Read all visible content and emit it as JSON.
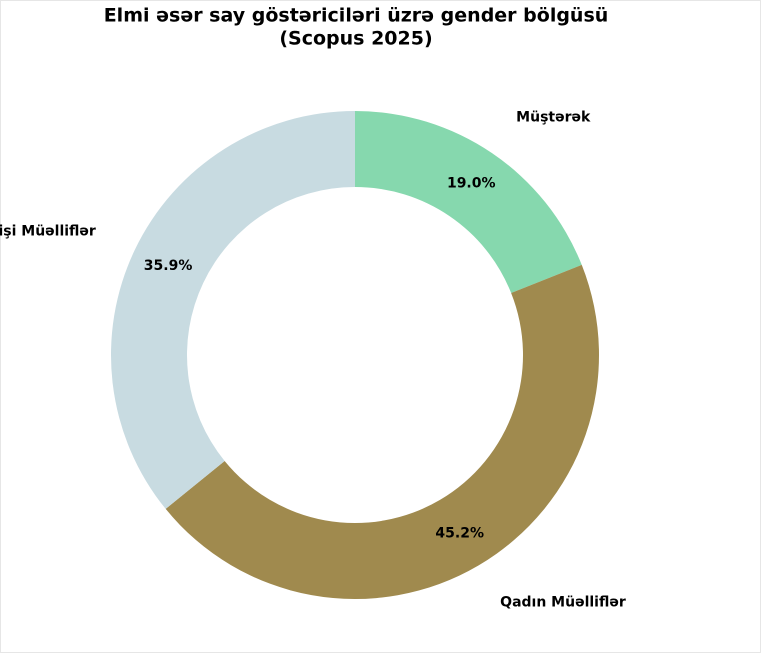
{
  "chart_data": {
    "type": "donut",
    "title": [
      "Elmi əsər say göstəriciləri üzrə gender bölgüsü",
      "(Scopus 2025)"
    ],
    "categories": [
      "Müştərək",
      "Qadın Müəlliflər",
      "Kişi Müəlliflər"
    ],
    "values": [
      19.0,
      45.2,
      35.9
    ],
    "value_labels": [
      "19.0%",
      "45.2%",
      "35.9%"
    ],
    "colors": [
      "#86d8ae",
      "#a08a4e",
      "#c8dbe1"
    ]
  }
}
